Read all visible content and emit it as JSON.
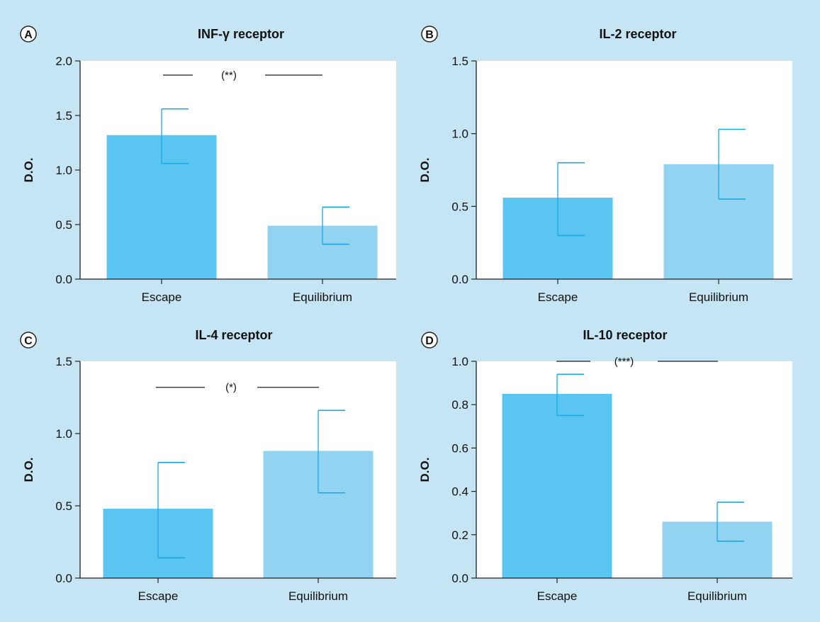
{
  "figure": {
    "background": "#c6e5f4"
  },
  "colors": {
    "escape_bar": "#5bc5f2",
    "equilibrium_bar": "#93d3f2",
    "error_bar": "#1aa8e0",
    "axis": "#222222",
    "text": "#111111",
    "plot_bg": "#ffffff"
  },
  "chart_data": [
    {
      "panel": "A",
      "type": "bar",
      "title": "INF-γ receptor",
      "ylabel": "D.O.",
      "categories": [
        "Escape",
        "Equilibrium"
      ],
      "values": [
        1.32,
        0.49
      ],
      "error_upper": [
        1.56,
        0.66
      ],
      "error_lower": [
        1.06,
        0.32
      ],
      "ylim": [
        0,
        2.0
      ],
      "yticks": [
        0.0,
        0.5,
        1.0,
        1.5,
        2.0
      ],
      "ytick_labels": [
        "0.0",
        "0.5",
        "1.0",
        "1.5",
        "2.0"
      ],
      "significance": {
        "label": "(**)",
        "y": 1.87
      }
    },
    {
      "panel": "B",
      "type": "bar",
      "title": "IL-2 receptor",
      "ylabel": "D.O.",
      "categories": [
        "Escape",
        "Equilibrium"
      ],
      "values": [
        0.56,
        0.79
      ],
      "error_upper": [
        0.8,
        1.03
      ],
      "error_lower": [
        0.3,
        0.55
      ],
      "ylim": [
        0,
        1.5
      ],
      "yticks": [
        0.0,
        0.5,
        1.0,
        1.5
      ],
      "ytick_labels": [
        "0.0",
        "0.5",
        "1.0",
        "1.5"
      ]
    },
    {
      "panel": "C",
      "type": "bar",
      "title": "IL-4 receptor",
      "ylabel": "D.O.",
      "categories": [
        "Escape",
        "Equilibrium"
      ],
      "values": [
        0.48,
        0.88
      ],
      "error_upper": [
        0.8,
        1.16
      ],
      "error_lower": [
        0.14,
        0.59
      ],
      "ylim": [
        0,
        1.5
      ],
      "yticks": [
        0.0,
        0.5,
        1.0,
        1.5
      ],
      "ytick_labels": [
        "0.0",
        "0.5",
        "1.0",
        "1.5"
      ],
      "significance": {
        "label": "(*)",
        "y": 1.32
      }
    },
    {
      "panel": "D",
      "type": "bar",
      "title": "IL-10 receptor",
      "ylabel": "D.O.",
      "categories": [
        "Escape",
        "Equilibrium"
      ],
      "values": [
        0.85,
        0.26
      ],
      "error_upper": [
        0.94,
        0.35
      ],
      "error_lower": [
        0.75,
        0.17
      ],
      "ylim": [
        0,
        1.0
      ],
      "yticks": [
        0.0,
        0.2,
        0.4,
        0.6,
        0.8,
        1.0
      ],
      "ytick_labels": [
        "0.0",
        "0.2",
        "0.4",
        "0.6",
        "0.8",
        "1.0"
      ],
      "significance": {
        "label": "(***)",
        "y": 1.0
      }
    }
  ]
}
